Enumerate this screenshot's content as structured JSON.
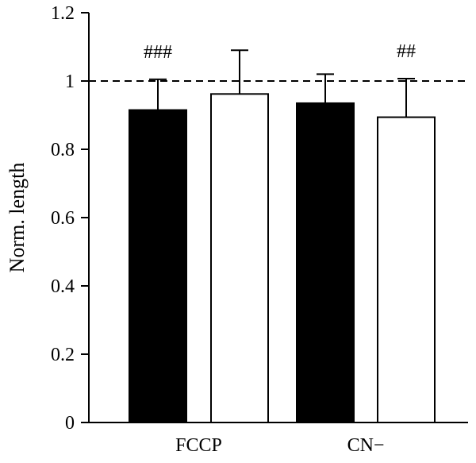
{
  "chart_data": {
    "type": "bar",
    "title": "",
    "ylabel": "Norm. length",
    "xlabel": "",
    "ylim": [
      0,
      1.2
    ],
    "yticks": [
      0,
      0.2,
      0.4,
      0.6,
      0.8,
      1,
      1.2
    ],
    "ytick_labels": [
      "0",
      "0.2",
      "0.4",
      "0.6",
      "0.8",
      "1",
      "1.2"
    ],
    "categories": [
      "FCCP",
      "CN−"
    ],
    "bars": [
      {
        "group": 0,
        "fill": "#000000",
        "value": 0.915,
        "error": 0.09,
        "annotation": "###"
      },
      {
        "group": 0,
        "fill": "#ffffff",
        "value": 0.962,
        "error": 0.128,
        "annotation": ""
      },
      {
        "group": 1,
        "fill": "#000000",
        "value": 0.935,
        "error": 0.085,
        "annotation": ""
      },
      {
        "group": 1,
        "fill": "#ffffff",
        "value": 0.894,
        "error": 0.113,
        "annotation": "##"
      }
    ],
    "reference_line": {
      "y": 1,
      "style": "dashed"
    },
    "grid": false,
    "legend": "none"
  }
}
